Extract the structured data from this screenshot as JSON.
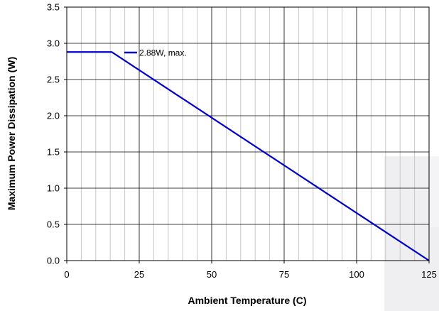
{
  "chart_data": {
    "type": "line",
    "title": "",
    "xlabel": "Ambient Temperature (C)",
    "ylabel": "Maximum Power Dissipation (W)",
    "xlim": [
      0,
      125
    ],
    "ylim": [
      0,
      3.5
    ],
    "x_ticks": [
      "0",
      "25",
      "50",
      "75",
      "100",
      "125"
    ],
    "y_ticks": [
      "0.0",
      "0.5",
      "1.0",
      "1.5",
      "2.0",
      "2.5",
      "3.0",
      "3.5"
    ],
    "grid": true,
    "grid_x_minor_step": 5,
    "grid_y_major_step": 0.5,
    "legend_placement": "top-left",
    "series": [
      {
        "name": "2.88W, max.",
        "color": "#0000cc",
        "x": [
          0,
          15.5,
          125
        ],
        "y": [
          2.88,
          2.88,
          0
        ]
      }
    ],
    "colors": {
      "series": "#0000cc",
      "grid": "#000000",
      "frame": "#000000"
    }
  }
}
